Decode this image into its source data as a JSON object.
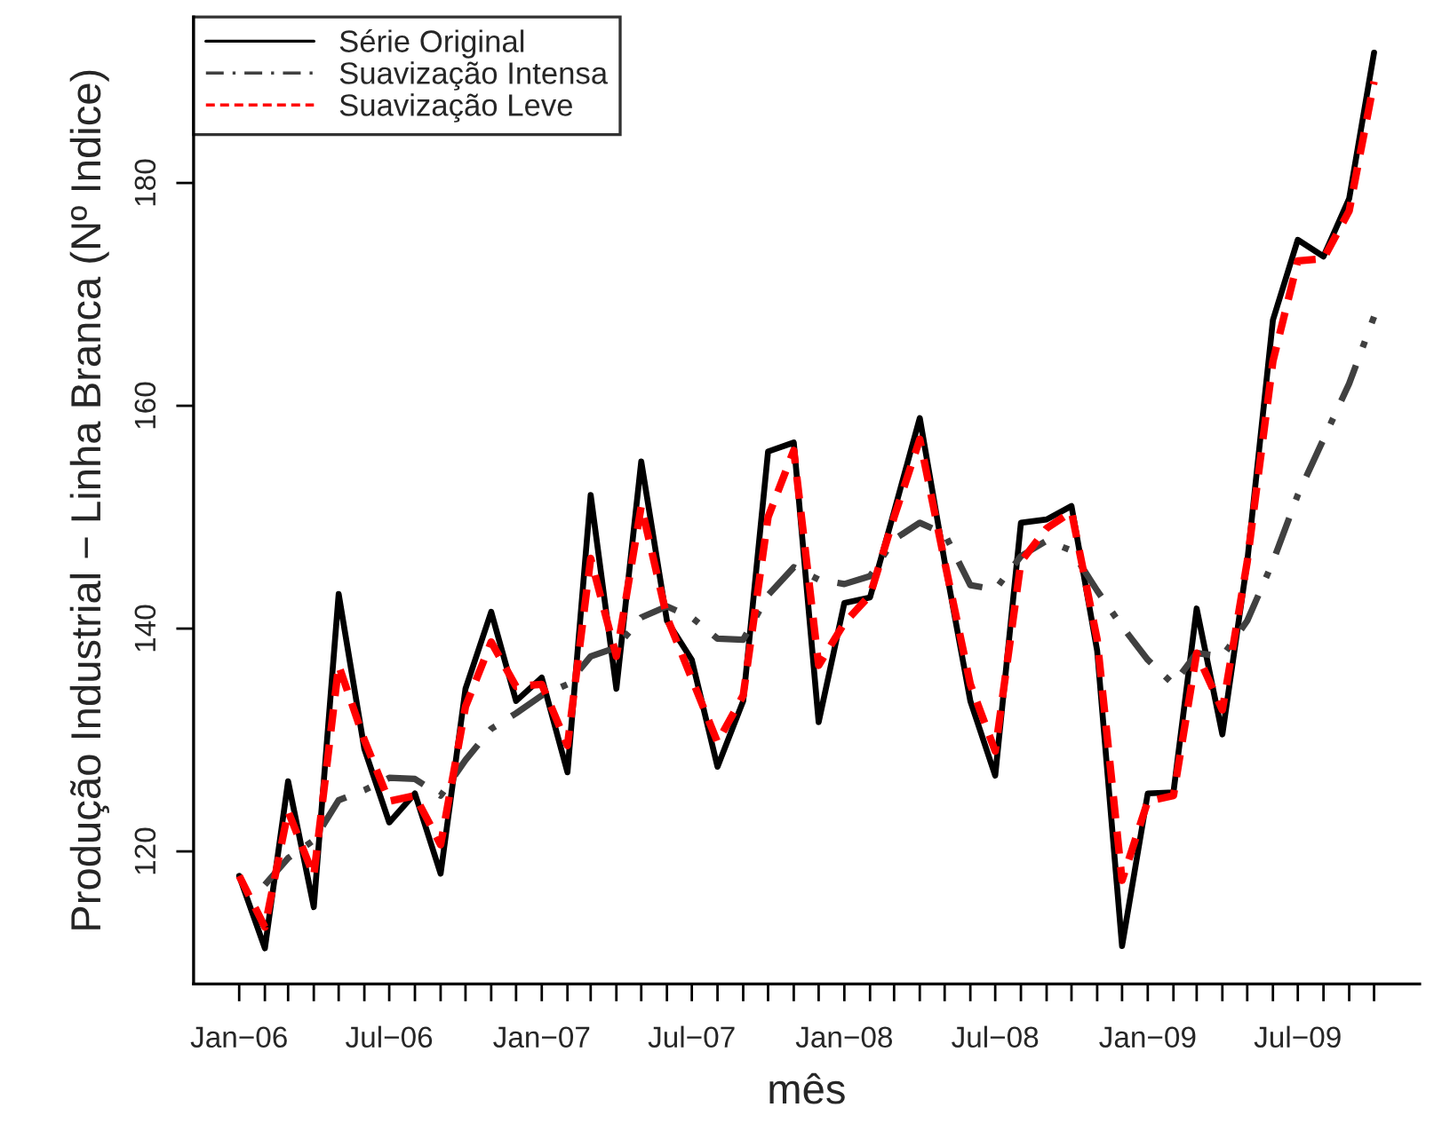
{
  "chart_data": {
    "type": "line",
    "xlabel": "mês",
    "ylabel": "Produção Industrial − Linha Branca (Nº Indice)",
    "x": [
      "2006-01",
      "2006-02",
      "2006-03",
      "2006-04",
      "2006-05",
      "2006-06",
      "2006-07",
      "2006-08",
      "2006-09",
      "2006-10",
      "2006-11",
      "2006-12",
      "2007-01",
      "2007-02",
      "2007-03",
      "2007-04",
      "2007-05",
      "2007-06",
      "2007-07",
      "2007-08",
      "2007-09",
      "2007-10",
      "2007-11",
      "2007-12",
      "2008-01",
      "2008-02",
      "2008-03",
      "2008-04",
      "2008-05",
      "2008-06",
      "2008-07",
      "2008-08",
      "2008-09",
      "2008-10",
      "2008-11",
      "2008-12",
      "2009-01",
      "2009-02",
      "2009-03",
      "2009-04",
      "2009-05",
      "2009-06",
      "2009-07",
      "2009-08",
      "2009-09",
      "2009-10"
    ],
    "series": [
      {
        "name": "Série Original",
        "color": "#000000",
        "line_style": "solid",
        "values": [
          117.8,
          111.3,
          126.3,
          115.0,
          143.1,
          129.2,
          122.6,
          125.2,
          118.0,
          134.6,
          141.5,
          133.5,
          135.6,
          127.1,
          152.0,
          134.6,
          155.0,
          140.7,
          137.2,
          127.6,
          133.5,
          155.9,
          156.7,
          131.6,
          142.3,
          142.8,
          150.5,
          158.9,
          146.0,
          133.5,
          126.8,
          149.5,
          149.8,
          151.0,
          138.0,
          111.5,
          125.2,
          125.3,
          141.8,
          130.5,
          146.0,
          167.7,
          174.9,
          173.4,
          178.6,
          191.7
        ]
      },
      {
        "name": "Suavização Intensa",
        "color": "#404040",
        "line_style": "dashdot",
        "values": [
          null,
          117.0,
          119.4,
          121.0,
          124.6,
          125.5,
          126.6,
          126.5,
          125.0,
          128.2,
          131.0,
          132.4,
          134.0,
          135.0,
          137.5,
          138.3,
          141.0,
          142.0,
          141.0,
          139.1,
          139.0,
          143.0,
          145.5,
          144.4,
          144.0,
          144.7,
          148.0,
          149.5,
          148.5,
          143.9,
          143.5,
          146.5,
          147.9,
          147.0,
          143.4,
          140.2,
          137.2,
          135.0,
          137.8,
          137.5,
          140.7,
          146.0,
          152.0,
          157.0,
          162.0,
          168.0
        ]
      },
      {
        "name": "Suavização Leve",
        "color": "#ff0000",
        "line_style": "dashed",
        "values": [
          117.8,
          113.2,
          123.6,
          117.8,
          136.7,
          130.0,
          124.5,
          125.0,
          120.6,
          133.0,
          138.8,
          134.8,
          135.0,
          129.5,
          146.3,
          137.5,
          151.0,
          141.0,
          135.5,
          129.8,
          134.0,
          150.0,
          156.0,
          136.7,
          140.5,
          143.0,
          150.0,
          157.0,
          146.0,
          135.0,
          129.0,
          146.0,
          149.0,
          150.5,
          139.0,
          117.4,
          124.5,
          125.0,
          137.8,
          132.7,
          146.0,
          164.0,
          173.0,
          173.2,
          177.5,
          189.1
        ]
      }
    ],
    "xlim": [
      "2005-11-07",
      "2009-11-25"
    ],
    "xticks": [
      {
        "value": "2006-01",
        "label": "Jan−06"
      },
      {
        "value": "2006-02",
        "label": null
      },
      {
        "value": "2006-03",
        "label": null
      },
      {
        "value": "2006-04",
        "label": null
      },
      {
        "value": "2006-05",
        "label": null
      },
      {
        "value": "2006-06",
        "label": null
      },
      {
        "value": "2006-07",
        "label": "Jul−06"
      },
      {
        "value": "2006-08",
        "label": null
      },
      {
        "value": "2006-09",
        "label": null
      },
      {
        "value": "2006-10",
        "label": null
      },
      {
        "value": "2006-11",
        "label": null
      },
      {
        "value": "2006-12",
        "label": null
      },
      {
        "value": "2007-01",
        "label": "Jan−07"
      },
      {
        "value": "2007-02",
        "label": null
      },
      {
        "value": "2007-03",
        "label": null
      },
      {
        "value": "2007-04",
        "label": null
      },
      {
        "value": "2007-05",
        "label": null
      },
      {
        "value": "2007-06",
        "label": null
      },
      {
        "value": "2007-07",
        "label": "Jul−07"
      },
      {
        "value": "2007-08",
        "label": null
      },
      {
        "value": "2007-09",
        "label": null
      },
      {
        "value": "2007-10",
        "label": null
      },
      {
        "value": "2007-11",
        "label": null
      },
      {
        "value": "2007-12",
        "label": null
      },
      {
        "value": "2008-01",
        "label": "Jan−08"
      },
      {
        "value": "2008-02",
        "label": null
      },
      {
        "value": "2008-03",
        "label": null
      },
      {
        "value": "2008-04",
        "label": null
      },
      {
        "value": "2008-05",
        "label": null
      },
      {
        "value": "2008-06",
        "label": null
      },
      {
        "value": "2008-07",
        "label": "Jul−08"
      },
      {
        "value": "2008-08",
        "label": null
      },
      {
        "value": "2008-09",
        "label": null
      },
      {
        "value": "2008-10",
        "label": null
      },
      {
        "value": "2008-11",
        "label": null
      },
      {
        "value": "2008-12",
        "label": null
      },
      {
        "value": "2009-01",
        "label": "Jan−09"
      },
      {
        "value": "2009-02",
        "label": null
      },
      {
        "value": "2009-03",
        "label": null
      },
      {
        "value": "2009-04",
        "label": null
      },
      {
        "value": "2009-05",
        "label": null
      },
      {
        "value": "2009-06",
        "label": null
      },
      {
        "value": "2009-07",
        "label": "Jul−09"
      },
      {
        "value": "2009-08",
        "label": null
      },
      {
        "value": "2009-09",
        "label": null
      },
      {
        "value": "2009-10",
        "label": null
      }
    ],
    "ylim": [
      108.1,
      194.9
    ],
    "yticks": [
      120,
      140,
      160,
      180
    ],
    "grid": false,
    "legend": "top left",
    "marker": "none"
  }
}
